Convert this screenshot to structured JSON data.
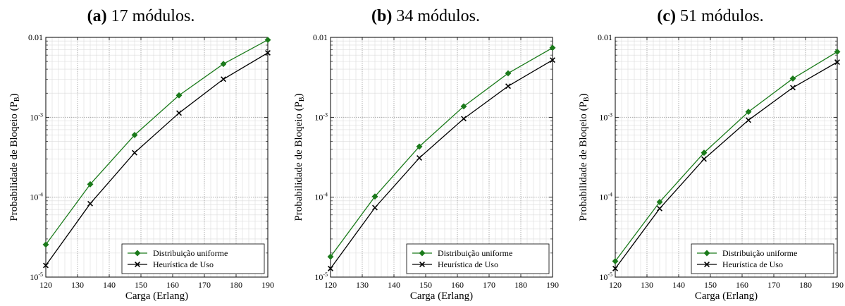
{
  "chart_data": [
    {
      "type": "line",
      "panel_label": "(a)",
      "title": "17 módulos.",
      "xlabel": "Carga (Erlang)",
      "ylabel": "Probabilidade de Bloqeio (P",
      "ylabel_sub": "B",
      "ylabel_close": ")",
      "xlim": [
        120,
        190
      ],
      "ylim": [
        1e-05,
        0.01
      ],
      "yscale": "log",
      "grid": true,
      "legend_position": "bottom-right",
      "x_ticks": [
        "120",
        "130",
        "140",
        "150",
        "160",
        "170",
        "180",
        "190"
      ],
      "y_ticks": [
        {
          "base": "10",
          "exp": "-5"
        },
        {
          "base": "10",
          "exp": "-4"
        },
        {
          "base": "10",
          "exp": "-3"
        },
        {
          "base": "0.01",
          "exp": ""
        }
      ],
      "x": [
        120,
        134,
        148,
        162,
        176,
        190
      ],
      "series": [
        {
          "name": "Distribuição uniforme",
          "color": "#1a7a1a",
          "marker": "diamond",
          "values": [
            2.55e-05,
            0.000145,
            0.0006,
            0.00188,
            0.00465,
            0.0093
          ]
        },
        {
          "name": "Heurística de Uso",
          "color": "#000000",
          "marker": "x",
          "values": [
            1.4e-05,
            8.3e-05,
            0.00036,
            0.00113,
            0.003,
            0.0064
          ]
        }
      ]
    },
    {
      "type": "line",
      "panel_label": "(b)",
      "title": "34 módulos.",
      "xlabel": "Carga (Erlang)",
      "ylabel": "Probabilidade de Bloqeio (P",
      "ylabel_sub": "B",
      "ylabel_close": ")",
      "xlim": [
        120,
        190
      ],
      "ylim": [
        1e-05,
        0.01
      ],
      "yscale": "log",
      "grid": true,
      "legend_position": "bottom-right",
      "x_ticks": [
        "120",
        "130",
        "140",
        "150",
        "160",
        "170",
        "180",
        "190"
      ],
      "y_ticks": [
        {
          "base": "10",
          "exp": "-5"
        },
        {
          "base": "10",
          "exp": "-4"
        },
        {
          "base": "10",
          "exp": "-3"
        },
        {
          "base": "0.01",
          "exp": ""
        }
      ],
      "x": [
        120,
        134,
        148,
        162,
        176,
        190
      ],
      "series": [
        {
          "name": "Distribuição uniforme",
          "color": "#1a7a1a",
          "marker": "diamond",
          "values": [
            1.8e-05,
            0.000102,
            0.00043,
            0.00137,
            0.00355,
            0.0074
          ]
        },
        {
          "name": "Heurística de Uso",
          "color": "#000000",
          "marker": "x",
          "values": [
            1.28e-05,
            7.4e-05,
            0.00031,
            0.00096,
            0.00245,
            0.0052
          ]
        }
      ]
    },
    {
      "type": "line",
      "panel_label": "(c)",
      "title": "51 módulos.",
      "xlabel": "Carga (Erlang)",
      "ylabel": "Probabilidade de Bloqeio (P",
      "ylabel_sub": "B",
      "ylabel_close": ")",
      "xlim": [
        120,
        190
      ],
      "ylim": [
        1e-05,
        0.01
      ],
      "yscale": "log",
      "grid": true,
      "legend_position": "bottom-right",
      "x_ticks": [
        "120",
        "130",
        "140",
        "150",
        "160",
        "170",
        "180",
        "190"
      ],
      "y_ticks": [
        {
          "base": "10",
          "exp": "-5"
        },
        {
          "base": "10",
          "exp": "-4"
        },
        {
          "base": "10",
          "exp": "-3"
        },
        {
          "base": "0.01",
          "exp": ""
        }
      ],
      "x": [
        120,
        134,
        148,
        162,
        176,
        190
      ],
      "series": [
        {
          "name": "Distribuição uniforme",
          "color": "#1a7a1a",
          "marker": "diamond",
          "values": [
            1.58e-05,
            8.7e-05,
            0.00036,
            0.00117,
            0.00305,
            0.0066
          ]
        },
        {
          "name": "Heurística de Uso",
          "color": "#000000",
          "marker": "x",
          "values": [
            1.28e-05,
            7.2e-05,
            0.0003,
            0.00092,
            0.00235,
            0.0049
          ]
        }
      ]
    }
  ]
}
